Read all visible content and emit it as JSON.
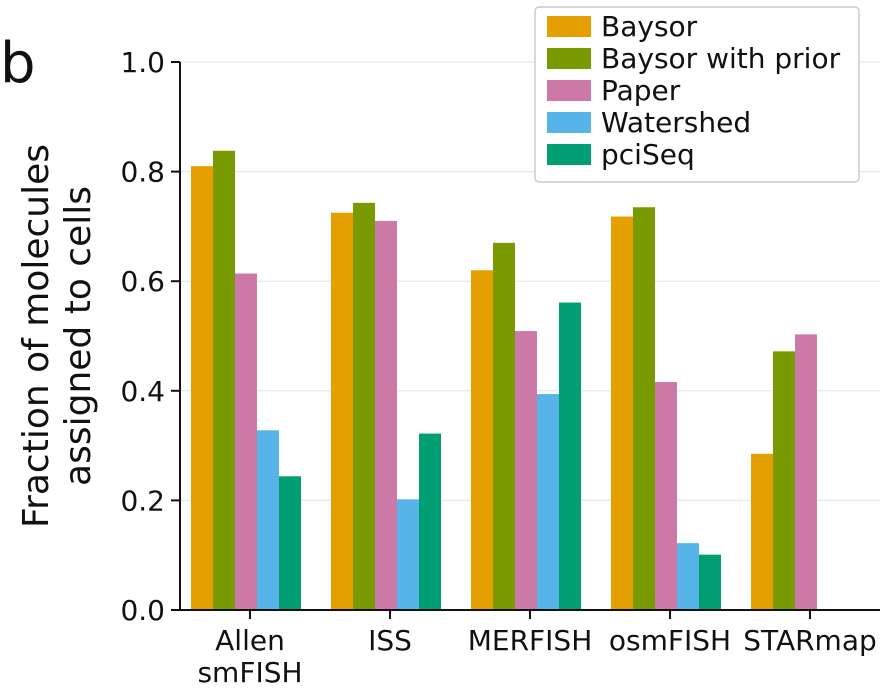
{
  "panel_label": "b",
  "chart_data": {
    "type": "bar",
    "title": "",
    "xlabel": "",
    "ylabel_lines": [
      "Fraction of molecules",
      "assigned to cells"
    ],
    "categories": [
      {
        "lines": [
          "Allen",
          "smFISH"
        ]
      },
      {
        "lines": [
          "ISS"
        ]
      },
      {
        "lines": [
          "MERFISH"
        ]
      },
      {
        "lines": [
          "osmFISH"
        ]
      },
      {
        "lines": [
          "STARmap"
        ]
      }
    ],
    "series": [
      {
        "name": "Baysor",
        "color": "#E69F00",
        "values": [
          0.81,
          0.725,
          0.62,
          0.718,
          0.285
        ]
      },
      {
        "name": "Baysor with prior",
        "color": "#7A9A01",
        "values": [
          0.838,
          0.743,
          0.67,
          0.735,
          0.472
        ]
      },
      {
        "name": "Paper",
        "color": "#CC79A7",
        "values": [
          0.614,
          0.71,
          0.509,
          0.416,
          0.503
        ]
      },
      {
        "name": "Watershed",
        "color": "#56B4E9",
        "values": [
          0.328,
          0.202,
          0.394,
          0.122,
          null
        ]
      },
      {
        "name": "pciSeq",
        "color": "#009E73",
        "values": [
          0.244,
          0.322,
          0.561,
          0.101,
          null
        ]
      }
    ],
    "ylim": [
      0,
      1.0
    ],
    "yticks": [
      "0.0",
      "0.2",
      "0.4",
      "0.6",
      "0.8",
      "1.0"
    ],
    "grid": true,
    "legend_position": "top-right"
  }
}
